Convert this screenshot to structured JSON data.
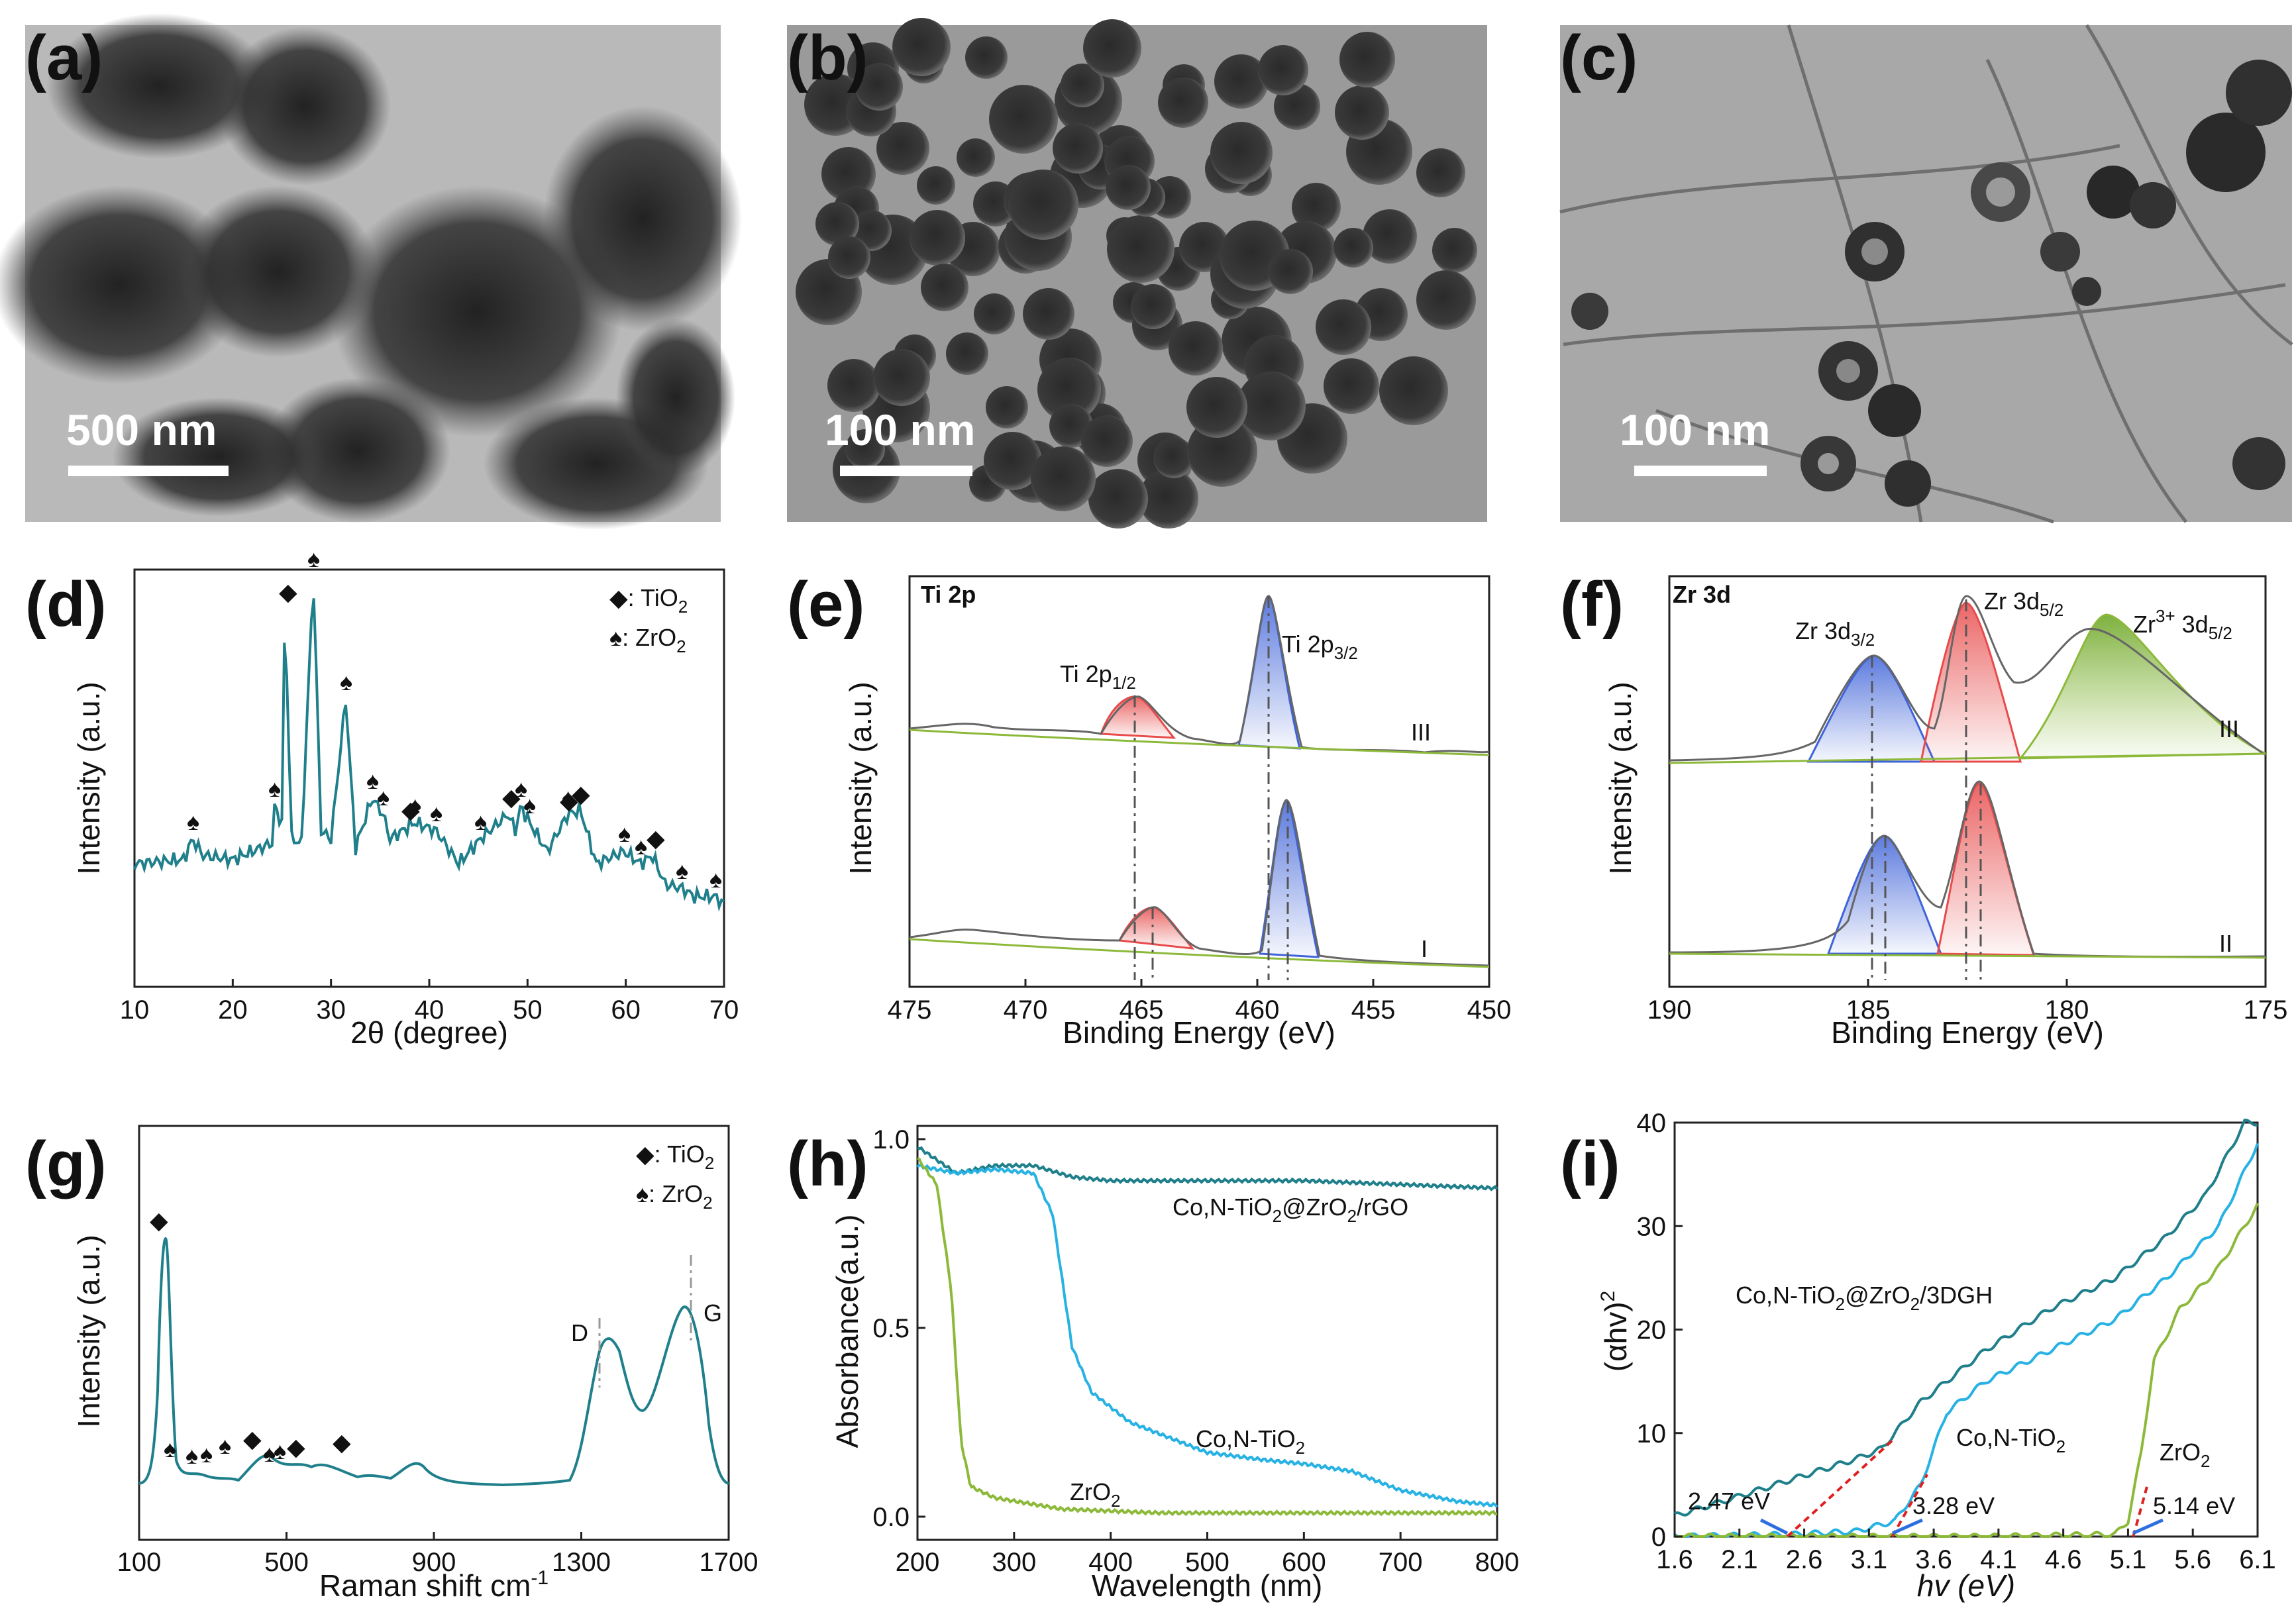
{
  "panel_labels": {
    "a": "(a)",
    "b": "(b)",
    "c": "(c)",
    "d": "(d)",
    "e": "(e)",
    "f": "(f)",
    "g": "(g)",
    "h": "(h)",
    "i": "(i)"
  },
  "tem": {
    "a": {
      "scale_bar": "500 nm"
    },
    "b": {
      "scale_bar": "100 nm"
    },
    "c": {
      "scale_bar": "100 nm"
    }
  },
  "colors": {
    "teal": "#1f7f8a",
    "cyan": "#27b2e3",
    "green": "#8cb93a",
    "red": "#e84b4b",
    "blue": "#3f63d8",
    "gray": "#777777"
  },
  "chart_data": [
    {
      "id": "d",
      "type": "line",
      "title": "",
      "xlabel": "2θ (degree)",
      "ylabel": "Intensity (a.u.)",
      "xlim": [
        10,
        70
      ],
      "xticks": [
        "10",
        "20",
        "30",
        "40",
        "50",
        "60",
        "70"
      ],
      "legend": [
        "◆: TiO",
        "2",
        "♠: ZrO",
        "2"
      ],
      "peaks_tio2": [
        25.3,
        37.8,
        48.0,
        53.9,
        55.1,
        62.7
      ],
      "peaks_zro2": [
        15.9,
        24.2,
        28.2,
        31.5,
        34.2,
        35.3,
        38.5,
        40.7,
        45.2,
        49.3,
        50.2,
        54.1,
        55.4,
        59.8,
        61.5,
        65.7,
        69.1
      ],
      "x": [
        10,
        15,
        15.9,
        17,
        20,
        24,
        24.2,
        25,
        25.3,
        26,
        27,
        28.2,
        29,
        30,
        31.5,
        32.5,
        34.2,
        35.3,
        36,
        38.5,
        40.7,
        43,
        45.2,
        48,
        48.8,
        49.3,
        50.2,
        52,
        54.1,
        55.4,
        57,
        59.8,
        61.5,
        62.7,
        64,
        65.7,
        67,
        69.1,
        70
      ],
      "y": [
        0.3,
        0.31,
        0.36,
        0.32,
        0.31,
        0.35,
        0.44,
        0.4,
        0.92,
        0.36,
        0.35,
        1.0,
        0.38,
        0.36,
        0.7,
        0.34,
        0.46,
        0.42,
        0.36,
        0.4,
        0.38,
        0.3,
        0.36,
        0.42,
        0.38,
        0.44,
        0.4,
        0.33,
        0.42,
        0.43,
        0.3,
        0.33,
        0.3,
        0.32,
        0.25,
        0.24,
        0.22,
        0.22,
        0.2
      ]
    },
    {
      "id": "e",
      "type": "line",
      "title": "Ti 2p",
      "xlabel": "Binding Energy (eV)",
      "ylabel": "Intensity (a.u.)",
      "xlim": [
        475,
        450
      ],
      "xticks": [
        "475",
        "470",
        "465",
        "460",
        "455",
        "450"
      ],
      "annotations": [
        "Ti 2p",
        "1/2",
        "Ti 2p",
        "3/2"
      ],
      "curve_labels": [
        "III",
        "I"
      ],
      "series": [
        {
          "name": "III",
          "p12": 465.1,
          "p32": 459.4
        },
        {
          "name": "I",
          "p12": 464.3,
          "p32": 458.6
        }
      ]
    },
    {
      "id": "f",
      "type": "line",
      "title": "Zr 3d",
      "xlabel": "Binding Energy (eV)",
      "ylabel": "Intensity (a.u.)",
      "xlim": [
        190,
        175
      ],
      "xticks": [
        "190",
        "185",
        "180",
        "175"
      ],
      "annotations": [
        "Zr 3d",
        "3/2",
        "Zr 3d",
        "5/2",
        "Zr",
        "3+",
        "3d",
        "5/2"
      ],
      "curve_labels": [
        "III",
        "II"
      ],
      "series": [
        {
          "name": "III",
          "p32": 184.8,
          "p52": 182.5,
          "zr3": 179.0
        },
        {
          "name": "II",
          "p32": 184.6,
          "p52": 182.1
        }
      ]
    },
    {
      "id": "g",
      "type": "line",
      "title": "",
      "xlabel": "Raman shift cm",
      "xlabel_sup": "-1",
      "ylabel": "Intensity (a.u.)",
      "xlim": [
        100,
        1700
      ],
      "xticks": [
        "100",
        "500",
        "900",
        "1300",
        "1700"
      ],
      "legend": [
        "◆: TiO",
        "2",
        "♠: ZrO",
        "2"
      ],
      "band_labels": [
        "D",
        "G"
      ],
      "bands": {
        "D": 1343,
        "G": 1593
      },
      "peaks_tio2": [
        144,
        397,
        516,
        639
      ],
      "peaks_zro2": [
        180,
        240,
        280,
        330,
        450,
        480
      ]
    },
    {
      "id": "h",
      "type": "line",
      "title": "",
      "xlabel": "Wavelength (nm)",
      "ylabel": "Absorbance(a.u.)",
      "xlim": [
        200,
        800
      ],
      "ylim": [
        0,
        1.0
      ],
      "xticks": [
        "200",
        "300",
        "400",
        "500",
        "600",
        "700",
        "800"
      ],
      "yticks": [
        "0.0",
        "0.5",
        "1.0"
      ],
      "series": [
        {
          "name": "Co,N-TiO",
          "sub": "2",
          "suffix": "@ZrO",
          "sub2": "2",
          "suffix2": "/rGO",
          "x": [
            200,
            240,
            280,
            320,
            360,
            400,
            500,
            600,
            700,
            800
          ],
          "y": [
            0.98,
            0.91,
            0.93,
            0.93,
            0.9,
            0.89,
            0.89,
            0.89,
            0.88,
            0.87
          ]
        },
        {
          "name": "Co,N-TiO",
          "sub": "2",
          "x": [
            200,
            240,
            280,
            320,
            340,
            360,
            380,
            420,
            500,
            560,
            600,
            650,
            700,
            760,
            800
          ],
          "y": [
            0.93,
            0.91,
            0.92,
            0.91,
            0.8,
            0.45,
            0.33,
            0.25,
            0.17,
            0.15,
            0.14,
            0.12,
            0.07,
            0.04,
            0.03
          ]
        },
        {
          "name": "ZrO",
          "sub": "2",
          "x": [
            200,
            220,
            235,
            245,
            255,
            280,
            350,
            450,
            600,
            800
          ],
          "y": [
            0.95,
            0.88,
            0.6,
            0.2,
            0.08,
            0.05,
            0.02,
            0.01,
            0.01,
            0.01
          ]
        }
      ]
    },
    {
      "id": "i",
      "type": "line",
      "title": "",
      "xlabel": "hv (eV)",
      "ylabel": "(αhv)",
      "ylabel_sup": "2",
      "xlim": [
        1.6,
        6.1
      ],
      "ylim": [
        0,
        40
      ],
      "xticks": [
        "1.6",
        "2.1",
        "2.6",
        "3.1",
        "3.6",
        "4.1",
        "4.6",
        "5.1",
        "5.6",
        "6.1"
      ],
      "yticks": [
        "0",
        "10",
        "20",
        "30",
        "40"
      ],
      "band_gaps": [
        {
          "label": "2.47 eV",
          "value": 2.47
        },
        {
          "label": "3.28 eV",
          "value": 3.28
        },
        {
          "label": "5.14 eV",
          "value": 5.14
        }
      ],
      "series": [
        {
          "name": "Co,N-TiO",
          "sub": "2",
          "suffix": "@ZrO",
          "sub2": "2",
          "suffix2": "/3DGH",
          "x": [
            1.6,
            2.0,
            2.5,
            3.0,
            3.2,
            3.5,
            4.0,
            4.5,
            5.0,
            5.4,
            5.7,
            6.0
          ],
          "y": [
            2.0,
            3.5,
            5.5,
            7.5,
            8.5,
            13.0,
            18.0,
            22.0,
            25.0,
            29.0,
            33.0,
            40.0
          ]
        },
        {
          "name": "Co,N-TiO",
          "sub": "2",
          "x": [
            1.6,
            2.5,
            3.0,
            3.3,
            3.5,
            3.7,
            4.0,
            4.5,
            5.0,
            5.4,
            5.8,
            6.1
          ],
          "y": [
            0,
            0.2,
            0.5,
            1.5,
            5.0,
            12.0,
            15.0,
            18.0,
            21.0,
            25.0,
            30.0,
            38.0
          ]
        },
        {
          "name": "ZrO",
          "sub": "2",
          "x": [
            1.6,
            4.0,
            5.0,
            5.1,
            5.2,
            5.3,
            5.5,
            5.8,
            6.1
          ],
          "y": [
            0,
            0,
            0.2,
            1.5,
            8.0,
            17.0,
            22.0,
            26.0,
            32.0
          ]
        }
      ]
    }
  ]
}
